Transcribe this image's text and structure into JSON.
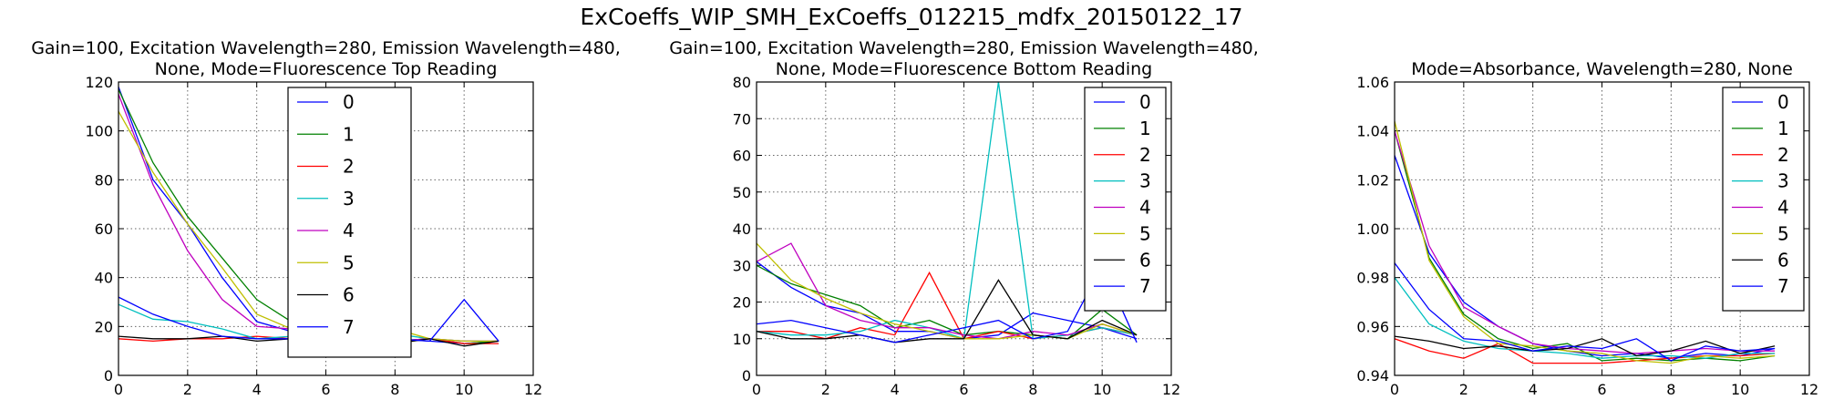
{
  "suptitle": "ExCoeffs_WIP_SMH_ExCoeffs_012215_mdfx_20150122_17",
  "legend_labels": [
    "0",
    "1",
    "2",
    "3",
    "4",
    "5",
    "6",
    "7"
  ],
  "series_colors": [
    "#0000ff",
    "#008000",
    "#ff0000",
    "#00bfbf",
    "#bf00bf",
    "#bfbf00",
    "#000000",
    "#0000ff"
  ],
  "chart_data": [
    {
      "type": "line",
      "title_lines": [
        "Gain=100, Excitation Wavelength=280, Emission Wavelength=480,",
        "None, Mode=Fluorescence Top Reading"
      ],
      "xlabel": "",
      "ylabel": "",
      "xlim": [
        0,
        12
      ],
      "ylim": [
        0,
        120
      ],
      "xticks": [
        0,
        2,
        4,
        6,
        8,
        10,
        12
      ],
      "yticks": [
        0,
        20,
        40,
        60,
        80,
        100,
        120
      ],
      "grid": true,
      "legend_loc": "upper-center",
      "x": [
        0,
        1,
        2,
        3,
        4,
        5,
        6,
        7,
        8,
        9,
        10,
        11
      ],
      "series": [
        {
          "name": "0",
          "values": [
            118,
            80,
            62,
            40,
            22,
            18,
            15,
            14,
            15,
            14,
            13,
            14
          ]
        },
        {
          "name": "1",
          "values": [
            117,
            87,
            65,
            48,
            31,
            22,
            15,
            14,
            14,
            15,
            13,
            14
          ]
        },
        {
          "name": "2",
          "values": [
            15,
            14,
            15,
            15,
            16,
            15,
            16,
            14,
            14,
            15,
            13,
            13
          ]
        },
        {
          "name": "3",
          "values": [
            29,
            23,
            22,
            19,
            15,
            16,
            14,
            20,
            17,
            15,
            14,
            14
          ]
        },
        {
          "name": "4",
          "values": [
            115,
            78,
            51,
            31,
            20,
            19,
            16,
            15,
            14,
            15,
            14,
            14
          ]
        },
        {
          "name": "5",
          "values": [
            108,
            83,
            62,
            44,
            25,
            19,
            22,
            13,
            19,
            15,
            14,
            14
          ]
        },
        {
          "name": "6",
          "values": [
            16,
            15,
            15,
            16,
            14,
            15,
            15,
            14,
            13,
            15,
            12,
            14
          ]
        },
        {
          "name": "7",
          "values": [
            32,
            25,
            20,
            16,
            15,
            15,
            14,
            13,
            15,
            14,
            31,
            14
          ]
        }
      ]
    },
    {
      "type": "line",
      "title_lines": [
        "Gain=100, Excitation Wavelength=280, Emission Wavelength=480,",
        "None, Mode=Fluorescence Bottom Reading"
      ],
      "xlabel": "",
      "ylabel": "",
      "xlim": [
        0,
        12
      ],
      "ylim": [
        0,
        80
      ],
      "xticks": [
        0,
        2,
        4,
        6,
        8,
        10,
        12
      ],
      "yticks": [
        0,
        10,
        20,
        30,
        40,
        50,
        60,
        70,
        80
      ],
      "grid": true,
      "legend_loc": "upper-right",
      "x": [
        0,
        1,
        2,
        3,
        4,
        5,
        6,
        7,
        8,
        9,
        10,
        11
      ],
      "series": [
        {
          "name": "0",
          "values": [
            31,
            24,
            19,
            17,
            12,
            12,
            10,
            11,
            17,
            15,
            13,
            10
          ]
        },
        {
          "name": "1",
          "values": [
            30,
            25,
            22,
            19,
            13,
            15,
            11,
            12,
            11,
            10,
            18,
            11
          ]
        },
        {
          "name": "2",
          "values": [
            12,
            12,
            10,
            13,
            11,
            28,
            10,
            12,
            10,
            11,
            13,
            11
          ]
        },
        {
          "name": "3",
          "values": [
            12,
            11,
            11,
            12,
            15,
            13,
            10,
            80,
            10,
            11,
            13,
            11
          ]
        },
        {
          "name": "4",
          "values": [
            31,
            36,
            19,
            15,
            13,
            13,
            11,
            10,
            12,
            11,
            14,
            11
          ]
        },
        {
          "name": "5",
          "values": [
            36,
            26,
            21,
            17,
            14,
            12,
            10,
            10,
            11,
            10,
            14,
            11
          ]
        },
        {
          "name": "6",
          "values": [
            12,
            10,
            10,
            11,
            9,
            10,
            10,
            26,
            11,
            10,
            15,
            11
          ]
        },
        {
          "name": "7",
          "values": [
            14,
            15,
            13,
            11,
            9,
            11,
            13,
            15,
            10,
            12,
            30,
            9
          ]
        }
      ]
    },
    {
      "type": "line",
      "title_lines": [
        "Mode=Absorbance, Wavelength=280, None"
      ],
      "xlabel": "",
      "ylabel": "",
      "xlim": [
        0,
        12
      ],
      "ylim": [
        0.94,
        1.06
      ],
      "xticks": [
        0,
        2,
        4,
        6,
        8,
        10,
        12
      ],
      "yticks": [
        0.94,
        0.96,
        0.98,
        1.0,
        1.02,
        1.04,
        1.06
      ],
      "grid": true,
      "legend_loc": "upper-right",
      "x": [
        0,
        1,
        2,
        3,
        4,
        5,
        6,
        7,
        8,
        9,
        10,
        11
      ],
      "series": [
        {
          "name": "0",
          "values": [
            1.03,
            0.99,
            0.97,
            0.96,
            0.953,
            0.95,
            0.948,
            0.949,
            0.947,
            0.949,
            0.948,
            0.951
          ]
        },
        {
          "name": "1",
          "values": [
            1.04,
            0.988,
            0.965,
            0.955,
            0.951,
            0.953,
            0.946,
            0.947,
            0.946,
            0.947,
            0.946,
            0.948
          ]
        },
        {
          "name": "2",
          "values": [
            0.955,
            0.95,
            0.947,
            0.953,
            0.945,
            0.945,
            0.945,
            0.946,
            0.947,
            0.948,
            0.948,
            0.949
          ]
        },
        {
          "name": "3",
          "values": [
            0.98,
            0.961,
            0.954,
            0.951,
            0.95,
            0.949,
            0.947,
            0.948,
            0.948,
            0.947,
            0.949,
            0.949
          ]
        },
        {
          "name": "4",
          "values": [
            1.04,
            0.993,
            0.968,
            0.96,
            0.953,
            0.951,
            0.95,
            0.949,
            0.95,
            0.951,
            0.95,
            0.95
          ]
        },
        {
          "name": "5",
          "values": [
            1.044,
            0.987,
            0.964,
            0.953,
            0.952,
            0.95,
            0.949,
            0.946,
            0.945,
            0.948,
            0.947,
            0.948
          ]
        },
        {
          "name": "6",
          "values": [
            0.956,
            0.954,
            0.951,
            0.952,
            0.95,
            0.951,
            0.955,
            0.948,
            0.95,
            0.954,
            0.949,
            0.952
          ]
        },
        {
          "name": "7",
          "values": [
            0.986,
            0.967,
            0.955,
            0.954,
            0.95,
            0.952,
            0.951,
            0.955,
            0.946,
            0.952,
            0.95,
            0.951
          ]
        }
      ]
    }
  ]
}
